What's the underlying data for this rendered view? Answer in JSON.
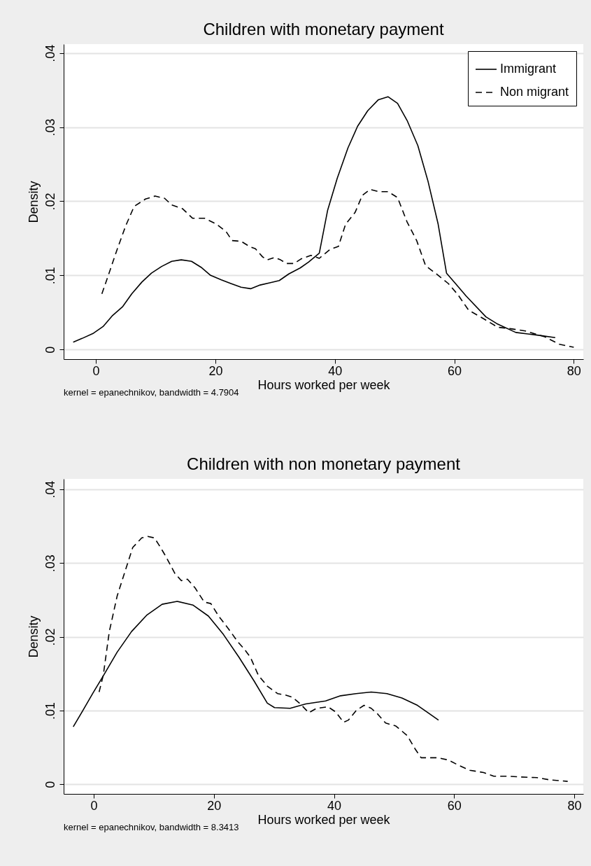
{
  "chart_data": [
    {
      "type": "line",
      "title": "Children with monetary payment",
      "xlabel": "Hours worked per week",
      "ylabel": "Density",
      "annotations": [
        "kernel = epanechnikov, bandwidth = 4.7904"
      ],
      "xlim": [
        -5.4,
        81.6
      ],
      "ylim": [
        -0.0013,
        0.0412
      ],
      "xticks": [
        0,
        20,
        40,
        60,
        80
      ],
      "yticks": [
        0,
        {
          "value": 0.01,
          "label": ".01"
        },
        {
          "value": 0.02,
          "label": ".02"
        },
        {
          "value": 0.03,
          "label": ".03"
        },
        {
          "value": 0.04,
          "label": ".04"
        }
      ],
      "grid": "y",
      "legend": "top right",
      "series": [
        {
          "name": "Immigrant",
          "color": "#000000",
          "line_style": "solid",
          "x": [
            -3.8,
            -2.3,
            -0.4,
            1.2,
            2.8,
            4.5,
            6.0,
            7.7,
            9.3,
            11.0,
            12.7,
            14.3,
            16.0,
            17.6,
            19.2,
            21.0,
            22.6,
            24.3,
            25.9,
            27.5,
            29.1,
            30.7,
            32.3,
            34.2,
            35.6,
            37.4,
            38.8,
            40.4,
            42.2,
            43.8,
            45.5,
            47.3,
            48.9,
            50.5,
            52.1,
            53.9,
            55.6,
            57.3,
            58.7,
            60.2,
            62.0,
            65.3,
            67.1,
            70.3,
            72.3,
            74.3,
            76.9
          ],
          "values": [
            0.001,
            0.0015,
            0.0022,
            0.0031,
            0.0046,
            0.0058,
            0.0075,
            0.0091,
            0.0103,
            0.0112,
            0.0119,
            0.0121,
            0.0119,
            0.0111,
            0.01,
            0.0094,
            0.0089,
            0.0084,
            0.0082,
            0.0087,
            0.009,
            0.0093,
            0.0102,
            0.011,
            0.0118,
            0.013,
            0.0188,
            0.0231,
            0.0272,
            0.0301,
            0.0322,
            0.0337,
            0.0341,
            0.0332,
            0.0309,
            0.0275,
            0.0227,
            0.0169,
            0.0103,
            0.0089,
            0.0072,
            0.0044,
            0.0035,
            0.0023,
            0.0021,
            0.0019,
            0.0016
          ]
        },
        {
          "name": "Non migrant",
          "color": "#000000",
          "line_style": "dashed",
          "x": [
            1.0,
            2.2,
            3.6,
            5.0,
            6.4,
            8.3,
            9.9,
            11.5,
            12.7,
            14.5,
            16.2,
            18.2,
            20.2,
            21.8,
            22.8,
            24.3,
            25.7,
            26.7,
            27.9,
            28.7,
            29.9,
            30.9,
            31.9,
            33.2,
            34.3,
            36.0,
            37.4,
            39.2,
            40.6,
            41.8,
            43.4,
            44.6,
            45.9,
            47.3,
            48.9,
            50.5,
            52.1,
            53.7,
            55.2,
            57.0,
            59.0,
            60.6,
            62.4,
            64.6,
            67.3,
            69.5,
            71.9,
            75.2,
            77.6,
            80.0
          ],
          "values": [
            0.0075,
            0.0103,
            0.0136,
            0.0167,
            0.0193,
            0.0203,
            0.0207,
            0.0204,
            0.0195,
            0.019,
            0.0177,
            0.0177,
            0.0169,
            0.0159,
            0.0147,
            0.0146,
            0.0139,
            0.0136,
            0.0125,
            0.0121,
            0.0124,
            0.0121,
            0.0116,
            0.0116,
            0.0122,
            0.0127,
            0.0123,
            0.0135,
            0.0139,
            0.0169,
            0.0185,
            0.0208,
            0.0216,
            0.0213,
            0.0213,
            0.0205,
            0.0172,
            0.0147,
            0.0113,
            0.0102,
            0.0089,
            0.0074,
            0.0053,
            0.0043,
            0.003,
            0.0028,
            0.0025,
            0.0017,
            0.0007,
            0.0003
          ]
        }
      ]
    },
    {
      "type": "line",
      "title": "Children with non monetary payment",
      "xlabel": "Hours worked per week",
      "ylabel": "Density",
      "annotations": [
        "kernel = epanechnikov, bandwidth = 8.3413"
      ],
      "xlim": [
        -5.0,
        81.5
      ],
      "ylim": [
        -0.0013,
        0.0414
      ],
      "xticks": [
        0,
        20,
        40,
        60,
        80
      ],
      "yticks": [
        0,
        {
          "value": 0.01,
          "label": ".01"
        },
        {
          "value": 0.02,
          "label": ".02"
        },
        {
          "value": 0.03,
          "label": ".03"
        },
        {
          "value": 0.04,
          "label": ".04"
        }
      ],
      "grid": "y",
      "legend": "top right",
      "series": [
        {
          "name": "Immigrant",
          "color": "#000000",
          "line_style": "solid",
          "x": [
            -3.4,
            -1.8,
            -0.1,
            1.6,
            3.9,
            6.3,
            8.8,
            11.4,
            13.9,
            16.5,
            19.1,
            21.6,
            24.2,
            26.7,
            28.9,
            30.1,
            32.7,
            35.3,
            38.6,
            41.1,
            43.7,
            46.2,
            48.8,
            51.3,
            53.9,
            57.4
          ],
          "values": [
            0.0078,
            0.01,
            0.0124,
            0.0147,
            0.0179,
            0.0207,
            0.0229,
            0.0244,
            0.0248,
            0.0243,
            0.0228,
            0.0203,
            0.0172,
            0.014,
            0.011,
            0.0104,
            0.0103,
            0.0109,
            0.0113,
            0.012,
            0.0123,
            0.0125,
            0.0123,
            0.0117,
            0.0107,
            0.0087
          ]
        },
        {
          "name": "Non migrant",
          "color": "#000000",
          "line_style": "dashed",
          "x": [
            0.9,
            1.6,
            2.6,
            3.9,
            5.0,
            6.5,
            8.0,
            9.0,
            10.1,
            10.9,
            12.0,
            13.5,
            14.6,
            15.6,
            16.9,
            18.4,
            19.5,
            20.8,
            22.5,
            24.0,
            25.0,
            26.1,
            27.4,
            28.9,
            30.6,
            31.9,
            33.1,
            34.4,
            35.8,
            37.1,
            39.0,
            40.3,
            41.6,
            42.4,
            43.7,
            45.0,
            46.2,
            47.3,
            48.6,
            50.3,
            52.2,
            53.5,
            54.5,
            57.3,
            59.0,
            60.7,
            62.6,
            64.9,
            66.6,
            68.7,
            70.9,
            73.8,
            75.9,
            78.9
          ],
          "values": [
            0.0125,
            0.0148,
            0.0207,
            0.0255,
            0.0283,
            0.0321,
            0.0334,
            0.0336,
            0.0334,
            0.0324,
            0.0309,
            0.0286,
            0.0276,
            0.0278,
            0.0266,
            0.0247,
            0.0245,
            0.0228,
            0.021,
            0.0193,
            0.0184,
            0.0172,
            0.0148,
            0.0133,
            0.0123,
            0.0121,
            0.0118,
            0.0109,
            0.0097,
            0.0103,
            0.0105,
            0.0098,
            0.0084,
            0.0087,
            0.01,
            0.0107,
            0.0103,
            0.0095,
            0.0083,
            0.0079,
            0.0066,
            0.0048,
            0.0036,
            0.0036,
            0.0033,
            0.0026,
            0.0019,
            0.0016,
            0.0011,
            0.0011,
            0.001,
            0.0009,
            0.0006,
            0.0004
          ]
        }
      ]
    }
  ]
}
